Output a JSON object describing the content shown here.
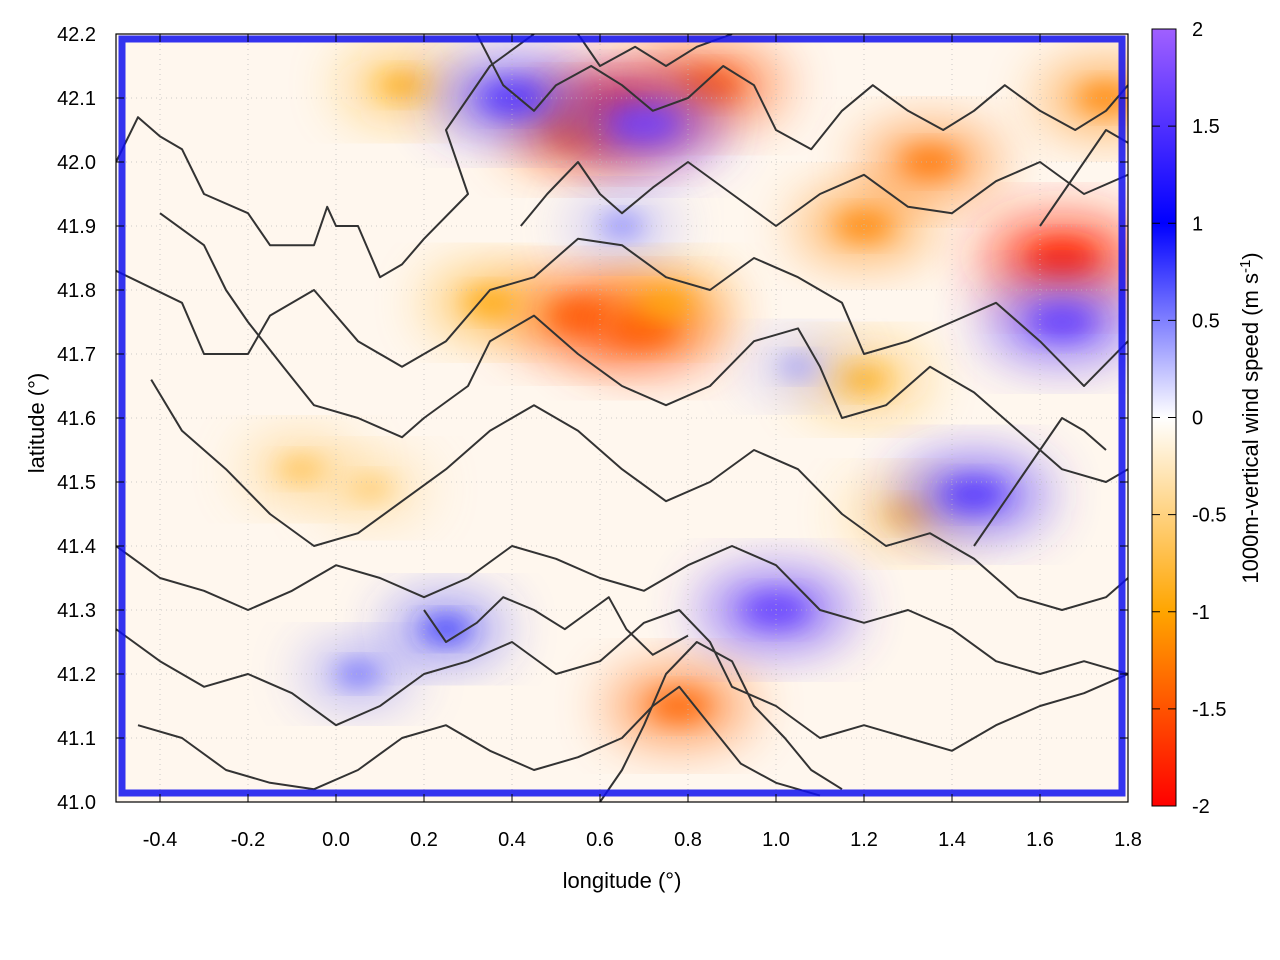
{
  "chart_data": {
    "type": "heatmap",
    "title": "",
    "xlabel": "longitude (°)",
    "ylabel": "latitude (°)",
    "xlim": [
      -0.5,
      1.8
    ],
    "ylim": [
      41.0,
      42.2
    ],
    "x_ticks": [
      "-0.4",
      "-0.2",
      "0.0",
      "0.2",
      "0.4",
      "0.6",
      "0.8",
      "1.0",
      "1.2",
      "1.4",
      "1.6",
      "1.8"
    ],
    "y_ticks": [
      "41.0",
      "41.1",
      "41.2",
      "41.3",
      "41.4",
      "41.5",
      "41.6",
      "41.7",
      "41.8",
      "41.9",
      "42.0",
      "42.1",
      "42.2"
    ],
    "grid": true,
    "colorbar": {
      "label": "1000m-vertical wind speed (m s",
      "label_sup": "-1",
      "label_end": ")",
      "range": [
        -2,
        2
      ],
      "ticks": [
        "2",
        "1.5",
        "1",
        "0.5",
        "0",
        "-0.5",
        "-1",
        "-1.5",
        "-2"
      ],
      "stops": [
        {
          "value": -2.0,
          "color": "#ff0000"
        },
        {
          "value": -1.0,
          "color": "#ffa500"
        },
        {
          "value": 0.0,
          "color": "#ffffff"
        },
        {
          "value": 1.0,
          "color": "#0000ff"
        },
        {
          "value": 2.0,
          "color": "#a060ff"
        }
      ]
    },
    "field_features": [
      {
        "type": "downdraft",
        "lon": 0.55,
        "lat": 41.76,
        "value": -1.5
      },
      {
        "type": "downdraft",
        "lon": 0.7,
        "lat": 41.74,
        "value": -1.6
      },
      {
        "type": "downdraft",
        "lon": 0.75,
        "lat": 41.78,
        "value": -1.0
      },
      {
        "type": "downdraft",
        "lon": 0.35,
        "lat": 41.78,
        "value": -1.0
      },
      {
        "type": "downdraft",
        "lon": 1.2,
        "lat": 41.9,
        "value": -1.2
      },
      {
        "type": "downdraft",
        "lon": 1.35,
        "lat": 42.0,
        "value": -1.3
      },
      {
        "type": "downdraft",
        "lon": 1.65,
        "lat": 41.85,
        "value": -1.8
      },
      {
        "type": "downdraft",
        "lon": 0.65,
        "lat": 42.08,
        "value": -1.8
      },
      {
        "type": "downdraft",
        "lon": 0.55,
        "lat": 42.05,
        "value": -1.4
      },
      {
        "type": "downdraft",
        "lon": 0.85,
        "lat": 42.12,
        "value": -1.5
      },
      {
        "type": "downdraft",
        "lon": 1.2,
        "lat": 41.66,
        "value": -0.9
      },
      {
        "type": "downdraft",
        "lon": 0.78,
        "lat": 41.15,
        "value": -1.4
      },
      {
        "type": "downdraft",
        "lon": 0.15,
        "lat": 42.12,
        "value": -0.9
      },
      {
        "type": "downdraft",
        "lon": -0.08,
        "lat": 41.52,
        "value": -0.7
      },
      {
        "type": "downdraft",
        "lon": 0.08,
        "lat": 41.49,
        "value": -0.6
      },
      {
        "type": "downdraft",
        "lon": 1.75,
        "lat": 42.1,
        "value": -1.2
      },
      {
        "type": "downdraft",
        "lon": 1.3,
        "lat": 41.45,
        "value": -0.8
      },
      {
        "type": "updraft",
        "lon": 0.65,
        "lat": 41.9,
        "value": 0.5
      },
      {
        "type": "updraft",
        "lon": 1.05,
        "lat": 41.68,
        "value": 0.4
      },
      {
        "type": "updraft",
        "lon": 0.25,
        "lat": 41.27,
        "value": 0.8
      },
      {
        "type": "updraft",
        "lon": 0.05,
        "lat": 41.2,
        "value": 0.6
      },
      {
        "type": "updraft",
        "lon": 1.65,
        "lat": 41.75,
        "value": 1.6
      },
      {
        "type": "updraft",
        "lon": 1.45,
        "lat": 41.48,
        "value": 1.5
      },
      {
        "type": "updraft",
        "lon": 1.0,
        "lat": 41.3,
        "value": 1.6
      },
      {
        "type": "updraft",
        "lon": 0.7,
        "lat": 42.06,
        "value": 1.7
      },
      {
        "type": "updraft",
        "lon": 0.4,
        "lat": 42.1,
        "value": 1.5
      }
    ],
    "contours": [
      [
        [
          -0.5,
          42.0
        ],
        [
          -0.45,
          42.07
        ],
        [
          -0.4,
          42.04
        ],
        [
          -0.35,
          42.02
        ],
        [
          -0.3,
          41.95
        ],
        [
          -0.2,
          41.92
        ],
        [
          -0.15,
          41.87
        ],
        [
          -0.05,
          41.87
        ],
        [
          -0.02,
          41.93
        ],
        [
          0.0,
          41.9
        ],
        [
          0.05,
          41.9
        ],
        [
          0.1,
          41.82
        ],
        [
          0.15,
          41.84
        ],
        [
          0.2,
          41.88
        ],
        [
          0.3,
          41.95
        ],
        [
          0.25,
          42.05
        ],
        [
          0.3,
          42.1
        ],
        [
          0.35,
          42.15
        ],
        [
          0.45,
          42.2
        ]
      ],
      [
        [
          -0.5,
          41.83
        ],
        [
          -0.35,
          41.78
        ],
        [
          -0.3,
          41.7
        ],
        [
          -0.2,
          41.7
        ],
        [
          -0.15,
          41.76
        ],
        [
          -0.05,
          41.8
        ],
        [
          0.05,
          41.72
        ],
        [
          0.15,
          41.68
        ],
        [
          0.25,
          41.72
        ],
        [
          0.35,
          41.8
        ],
        [
          0.45,
          41.82
        ],
        [
          0.55,
          41.88
        ],
        [
          0.65,
          41.87
        ],
        [
          0.75,
          41.82
        ],
        [
          0.85,
          41.8
        ],
        [
          0.95,
          41.85
        ],
        [
          1.05,
          41.82
        ],
        [
          1.15,
          41.78
        ],
        [
          1.2,
          41.7
        ],
        [
          1.3,
          41.72
        ],
        [
          1.4,
          41.75
        ],
        [
          1.5,
          41.78
        ],
        [
          1.6,
          41.72
        ],
        [
          1.7,
          41.65
        ],
        [
          1.8,
          41.72
        ]
      ],
      [
        [
          -0.4,
          41.92
        ],
        [
          -0.3,
          41.87
        ],
        [
          -0.25,
          41.8
        ],
        [
          -0.2,
          41.75
        ],
        [
          -0.12,
          41.68
        ],
        [
          -0.05,
          41.62
        ],
        [
          0.05,
          41.6
        ],
        [
          0.15,
          41.57
        ],
        [
          0.2,
          41.6
        ],
        [
          0.3,
          41.65
        ],
        [
          0.35,
          41.72
        ],
        [
          0.45,
          41.76
        ],
        [
          0.55,
          41.7
        ],
        [
          0.65,
          41.65
        ],
        [
          0.75,
          41.62
        ],
        [
          0.85,
          41.65
        ],
        [
          0.95,
          41.72
        ],
        [
          1.05,
          41.74
        ],
        [
          1.1,
          41.68
        ],
        [
          1.15,
          41.6
        ],
        [
          1.25,
          41.62
        ],
        [
          1.35,
          41.68
        ],
        [
          1.45,
          41.64
        ],
        [
          1.55,
          41.58
        ],
        [
          1.65,
          41.52
        ],
        [
          1.75,
          41.5
        ],
        [
          1.8,
          41.52
        ]
      ],
      [
        [
          -0.42,
          41.66
        ],
        [
          -0.35,
          41.58
        ],
        [
          -0.25,
          41.52
        ],
        [
          -0.15,
          41.45
        ],
        [
          -0.05,
          41.4
        ],
        [
          0.05,
          41.42
        ],
        [
          0.15,
          41.47
        ],
        [
          0.25,
          41.52
        ],
        [
          0.35,
          41.58
        ],
        [
          0.45,
          41.62
        ],
        [
          0.55,
          41.58
        ],
        [
          0.65,
          41.52
        ],
        [
          0.75,
          41.47
        ],
        [
          0.85,
          41.5
        ],
        [
          0.95,
          41.55
        ],
        [
          1.05,
          41.52
        ],
        [
          1.15,
          41.45
        ],
        [
          1.25,
          41.4
        ],
        [
          1.35,
          41.42
        ],
        [
          1.45,
          41.38
        ],
        [
          1.55,
          41.32
        ],
        [
          1.65,
          41.3
        ],
        [
          1.75,
          41.32
        ],
        [
          1.8,
          41.35
        ]
      ],
      [
        [
          -0.5,
          41.4
        ],
        [
          -0.4,
          41.35
        ],
        [
          -0.3,
          41.33
        ],
        [
          -0.2,
          41.3
        ],
        [
          -0.1,
          41.33
        ],
        [
          0.0,
          41.37
        ],
        [
          0.1,
          41.35
        ],
        [
          0.2,
          41.32
        ],
        [
          0.3,
          41.35
        ],
        [
          0.4,
          41.4
        ],
        [
          0.5,
          41.38
        ],
        [
          0.6,
          41.35
        ],
        [
          0.7,
          41.33
        ],
        [
          0.8,
          41.37
        ],
        [
          0.9,
          41.4
        ],
        [
          1.0,
          41.37
        ],
        [
          1.1,
          41.3
        ],
        [
          1.2,
          41.28
        ],
        [
          1.3,
          41.3
        ],
        [
          1.4,
          41.27
        ],
        [
          1.5,
          41.22
        ],
        [
          1.6,
          41.2
        ],
        [
          1.7,
          41.22
        ],
        [
          1.8,
          41.2
        ]
      ],
      [
        [
          -0.5,
          41.27
        ],
        [
          -0.4,
          41.22
        ],
        [
          -0.3,
          41.18
        ],
        [
          -0.2,
          41.2
        ],
        [
          -0.1,
          41.17
        ],
        [
          0.0,
          41.12
        ],
        [
          0.1,
          41.15
        ],
        [
          0.2,
          41.2
        ],
        [
          0.3,
          41.22
        ],
        [
          0.4,
          41.25
        ],
        [
          0.5,
          41.2
        ],
        [
          0.6,
          41.22
        ],
        [
          0.7,
          41.28
        ],
        [
          0.78,
          41.3
        ],
        [
          0.85,
          41.25
        ],
        [
          0.9,
          41.18
        ],
        [
          1.0,
          41.15
        ],
        [
          1.1,
          41.1
        ],
        [
          1.2,
          41.12
        ],
        [
          1.3,
          41.1
        ],
        [
          1.4,
          41.08
        ],
        [
          1.5,
          41.12
        ],
        [
          1.6,
          41.15
        ],
        [
          1.7,
          41.17
        ],
        [
          1.8,
          41.2
        ]
      ],
      [
        [
          -0.45,
          41.12
        ],
        [
          -0.35,
          41.1
        ],
        [
          -0.25,
          41.05
        ],
        [
          -0.15,
          41.03
        ],
        [
          -0.05,
          41.02
        ],
        [
          0.05,
          41.05
        ],
        [
          0.15,
          41.1
        ],
        [
          0.25,
          41.12
        ],
        [
          0.35,
          41.08
        ],
        [
          0.45,
          41.05
        ],
        [
          0.55,
          41.07
        ],
        [
          0.65,
          41.1
        ],
        [
          0.72,
          41.15
        ],
        [
          0.78,
          41.18
        ],
        [
          0.85,
          41.12
        ],
        [
          0.92,
          41.06
        ],
        [
          1.0,
          41.03
        ],
        [
          1.1,
          41.01
        ]
      ],
      [
        [
          0.6,
          41.0
        ],
        [
          0.65,
          41.05
        ],
        [
          0.7,
          41.12
        ],
        [
          0.75,
          41.2
        ],
        [
          0.82,
          41.25
        ],
        [
          0.9,
          41.22
        ],
        [
          0.95,
          41.15
        ],
        [
          1.02,
          41.1
        ],
        [
          1.08,
          41.05
        ],
        [
          1.15,
          41.02
        ]
      ],
      [
        [
          0.42,
          41.9
        ],
        [
          0.48,
          41.95
        ],
        [
          0.55,
          42.0
        ],
        [
          0.6,
          41.95
        ],
        [
          0.65,
          41.92
        ],
        [
          0.72,
          41.96
        ],
        [
          0.8,
          42.0
        ],
        [
          0.9,
          41.95
        ],
        [
          1.0,
          41.9
        ],
        [
          1.1,
          41.95
        ],
        [
          1.2,
          41.98
        ],
        [
          1.3,
          41.93
        ],
        [
          1.4,
          41.92
        ],
        [
          1.5,
          41.97
        ],
        [
          1.6,
          42.0
        ],
        [
          1.7,
          41.95
        ],
        [
          1.8,
          41.98
        ]
      ],
      [
        [
          0.32,
          42.2
        ],
        [
          0.38,
          42.12
        ],
        [
          0.45,
          42.08
        ],
        [
          0.5,
          42.12
        ],
        [
          0.58,
          42.15
        ],
        [
          0.65,
          42.12
        ],
        [
          0.72,
          42.08
        ],
        [
          0.8,
          42.1
        ],
        [
          0.88,
          42.15
        ],
        [
          0.95,
          42.12
        ],
        [
          1.0,
          42.05
        ],
        [
          1.08,
          42.02
        ],
        [
          1.15,
          42.08
        ],
        [
          1.22,
          42.12
        ],
        [
          1.3,
          42.08
        ],
        [
          1.38,
          42.05
        ],
        [
          1.45,
          42.08
        ],
        [
          1.52,
          42.12
        ],
        [
          1.6,
          42.08
        ],
        [
          1.68,
          42.05
        ],
        [
          1.75,
          42.08
        ],
        [
          1.8,
          42.12
        ]
      ],
      [
        [
          0.55,
          42.2
        ],
        [
          0.6,
          42.15
        ],
        [
          0.68,
          42.18
        ],
        [
          0.75,
          42.15
        ],
        [
          0.82,
          42.18
        ],
        [
          0.9,
          42.2
        ]
      ],
      [
        [
          0.2,
          41.3
        ],
        [
          0.25,
          41.25
        ],
        [
          0.32,
          41.28
        ],
        [
          0.38,
          41.32
        ],
        [
          0.45,
          41.3
        ],
        [
          0.52,
          41.27
        ],
        [
          0.58,
          41.3
        ],
        [
          0.62,
          41.32
        ],
        [
          0.66,
          41.27
        ],
        [
          0.72,
          41.23
        ],
        [
          0.8,
          41.26
        ]
      ],
      [
        [
          1.6,
          41.9
        ],
        [
          1.65,
          41.95
        ],
        [
          1.7,
          42.0
        ],
        [
          1.75,
          42.05
        ],
        [
          1.8,
          42.03
        ]
      ],
      [
        [
          1.45,
          41.4
        ],
        [
          1.5,
          41.45
        ],
        [
          1.55,
          41.5
        ],
        [
          1.6,
          41.55
        ],
        [
          1.65,
          41.6
        ],
        [
          1.7,
          41.58
        ],
        [
          1.75,
          41.55
        ]
      ]
    ]
  }
}
